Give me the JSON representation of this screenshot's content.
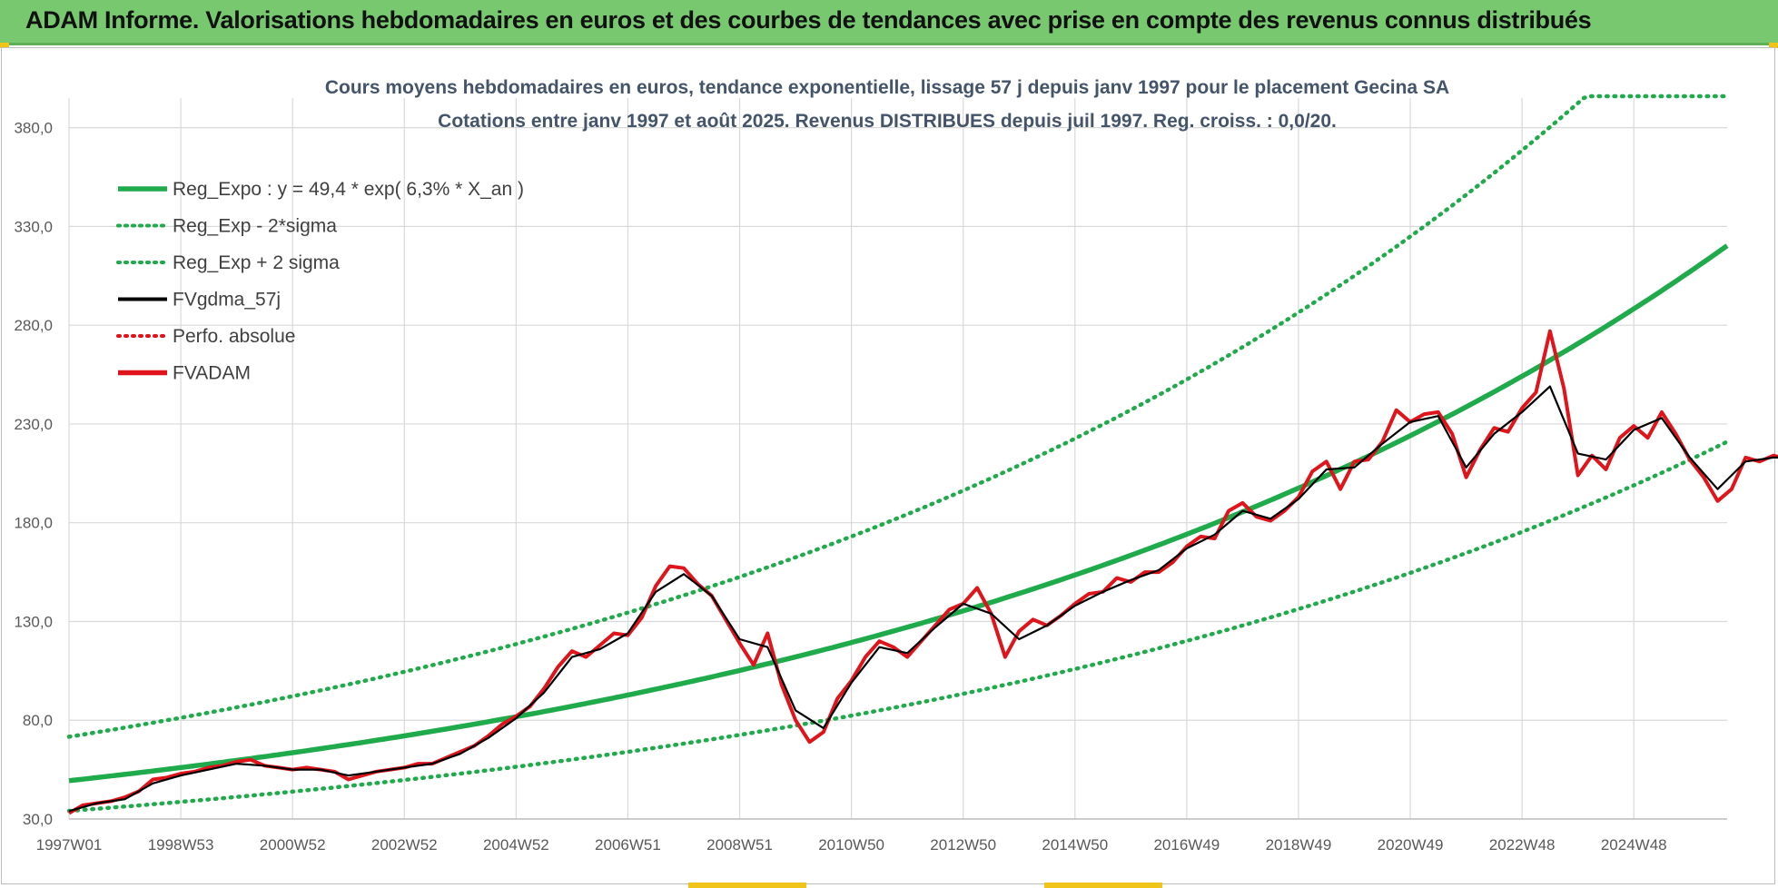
{
  "header": {
    "title": "ADAM Informe. Valorisations hebdomadaires en euros et des courbes de tendances avec prise en compte des revenus connus distribués"
  },
  "colors": {
    "banner": "#77c86e",
    "trend": "#1faa4b",
    "band": "#1faa4b",
    "smoothed": "#000000",
    "perfo": "#e0141b",
    "price": "#e0141b",
    "grid": "#d9d9d9",
    "axis_text": "#595959",
    "title_text": "#44546a"
  },
  "chart_data": {
    "type": "line",
    "title": "Cours moyens hebdomadaires en euros, tendance exponentielle, lissage 57 j depuis janv 1997 pour le placement Gecina SA",
    "subtitle": "Cotations entre janv 1997 et août 2025. Revenus DISTRIBUES depuis juil 1997. Reg. croiss. : 0,0/20.",
    "xlabel": "",
    "ylabel": "",
    "x_range": [
      "1997W01",
      "2025W34"
    ],
    "ylim": [
      30,
      395
    ],
    "yticks": [
      30,
      80,
      130,
      180,
      230,
      280,
      330,
      380
    ],
    "ytick_labels": [
      "30,0",
      "80,0",
      "130,0",
      "180,0",
      "230,0",
      "280,0",
      "330,0",
      "380,0"
    ],
    "xtick_labels": [
      "1997W01",
      "1998W53",
      "2000W52",
      "2002W52",
      "2004W52",
      "2006W51",
      "2008W51",
      "2010W50",
      "2012W50",
      "2014W50",
      "2016W49",
      "2018W49",
      "2020W49",
      "2022W48",
      "2024W48"
    ],
    "xtick_years": [
      1997.0,
      1999.0,
      2001.0,
      2003.0,
      2005.0,
      2007.0,
      2009.0,
      2011.0,
      2013.0,
      2015.0,
      2017.0,
      2019.0,
      2021.0,
      2023.0,
      2025.0
    ],
    "x_start_year": 1997.0,
    "x_end_year": 2026.67,
    "grid": true,
    "legend_position": "top-left",
    "regression": {
      "intercept": 49.4,
      "rate_percent": 6.3,
      "band_factor_minus": 0.69,
      "band_factor_plus": 1.45
    },
    "legend": [
      {
        "label": "Reg_Expo : y = 49,4 * exp( 6,3% *  X_an )",
        "style": "solid-thick",
        "color": "#1faa4b"
      },
      {
        "label": "Reg_Exp - 2*sigma",
        "style": "dotted",
        "color": "#1faa4b"
      },
      {
        "label": "Reg_Exp + 2 sigma",
        "style": "dotted",
        "color": "#1faa4b"
      },
      {
        "label": "FVgdma_57j",
        "style": "solid",
        "color": "#000000"
      },
      {
        "label": "Perfo. absolue",
        "style": "dotted",
        "color": "#e0141b"
      },
      {
        "label": "FVADAM",
        "style": "solid-thick",
        "color": "#e0141b"
      }
    ],
    "series": [
      {
        "name": "FVADAM",
        "points": [
          [
            1997.0,
            33
          ],
          [
            1997.25,
            37
          ],
          [
            1997.5,
            38
          ],
          [
            1997.75,
            39
          ],
          [
            1998.0,
            41
          ],
          [
            1998.25,
            44
          ],
          [
            1998.5,
            50
          ],
          [
            1998.75,
            51
          ],
          [
            1999.0,
            53
          ],
          [
            1999.25,
            54
          ],
          [
            1999.5,
            56
          ],
          [
            1999.75,
            57
          ],
          [
            2000.0,
            59
          ],
          [
            2000.25,
            60
          ],
          [
            2000.5,
            57
          ],
          [
            2000.75,
            56
          ],
          [
            2001.0,
            55
          ],
          [
            2001.25,
            56
          ],
          [
            2001.5,
            55
          ],
          [
            2001.75,
            54
          ],
          [
            2002.0,
            50
          ],
          [
            2002.25,
            52
          ],
          [
            2002.5,
            54
          ],
          [
            2002.75,
            55
          ],
          [
            2003.0,
            56
          ],
          [
            2003.25,
            58
          ],
          [
            2003.5,
            58
          ],
          [
            2003.75,
            61
          ],
          [
            2004.0,
            64
          ],
          [
            2004.25,
            67
          ],
          [
            2004.5,
            72
          ],
          [
            2004.75,
            78
          ],
          [
            2005.0,
            82
          ],
          [
            2005.25,
            87
          ],
          [
            2005.5,
            96
          ],
          [
            2005.75,
            107
          ],
          [
            2006.0,
            115
          ],
          [
            2006.25,
            112
          ],
          [
            2006.5,
            118
          ],
          [
            2006.75,
            124
          ],
          [
            2007.0,
            123
          ],
          [
            2007.25,
            132
          ],
          [
            2007.5,
            148
          ],
          [
            2007.75,
            158
          ],
          [
            2008.0,
            157
          ],
          [
            2008.25,
            149
          ],
          [
            2008.5,
            143
          ],
          [
            2008.75,
            131
          ],
          [
            2009.0,
            119
          ],
          [
            2009.25,
            108
          ],
          [
            2009.5,
            124
          ],
          [
            2009.75,
            98
          ],
          [
            2010.0,
            80
          ],
          [
            2010.25,
            69
          ],
          [
            2010.5,
            74
          ],
          [
            2010.75,
            91
          ],
          [
            2011.0,
            100
          ],
          [
            2011.25,
            112
          ],
          [
            2011.5,
            120
          ],
          [
            2011.75,
            117
          ],
          [
            2012.0,
            112
          ],
          [
            2012.25,
            120
          ],
          [
            2012.5,
            128
          ],
          [
            2012.75,
            136
          ],
          [
            2013.0,
            139
          ],
          [
            2013.25,
            147
          ],
          [
            2013.5,
            134
          ],
          [
            2013.75,
            112
          ],
          [
            2014.0,
            125
          ],
          [
            2014.25,
            131
          ],
          [
            2014.5,
            128
          ],
          [
            2014.75,
            133
          ],
          [
            2015.0,
            139
          ],
          [
            2015.25,
            144
          ],
          [
            2015.5,
            145
          ],
          [
            2015.75,
            152
          ],
          [
            2016.0,
            150
          ],
          [
            2016.25,
            155
          ],
          [
            2016.5,
            155
          ],
          [
            2016.75,
            160
          ],
          [
            2017.0,
            168
          ],
          [
            2017.25,
            173
          ],
          [
            2017.5,
            172
          ],
          [
            2017.75,
            186
          ],
          [
            2018.0,
            190
          ],
          [
            2018.25,
            183
          ],
          [
            2018.5,
            181
          ],
          [
            2018.75,
            186
          ],
          [
            2019.0,
            193
          ],
          [
            2019.25,
            206
          ],
          [
            2019.5,
            211
          ],
          [
            2019.75,
            197
          ],
          [
            2020.0,
            211
          ],
          [
            2020.25,
            212
          ],
          [
            2020.5,
            221
          ],
          [
            2020.75,
            237
          ],
          [
            2021.0,
            231
          ],
          [
            2021.25,
            235
          ],
          [
            2021.5,
            236
          ],
          [
            2021.75,
            225
          ],
          [
            2022.0,
            203
          ],
          [
            2022.25,
            217
          ],
          [
            2022.5,
            228
          ],
          [
            2022.75,
            226
          ],
          [
            2023.0,
            238
          ],
          [
            2023.25,
            246
          ],
          [
            2023.5,
            277
          ],
          [
            2023.75,
            248
          ],
          [
            2024.0,
            204
          ],
          [
            2024.25,
            214
          ],
          [
            2024.5,
            207
          ],
          [
            2024.75,
            223
          ],
          [
            2025.0,
            229
          ],
          [
            2025.25,
            223
          ],
          [
            2025.5,
            236
          ],
          [
            2025.75,
            225
          ],
          [
            2026.0,
            212
          ],
          [
            2026.25,
            203
          ],
          [
            2026.5,
            191
          ],
          [
            2026.75,
            197
          ],
          [
            2027.0,
            213
          ],
          [
            2027.25,
            211
          ],
          [
            2027.5,
            214
          ],
          [
            2027.75,
            212
          ],
          [
            2028.0,
            215
          ],
          [
            2028.25,
            211
          ],
          [
            2028.5,
            226
          ],
          [
            2028.75,
            212
          ],
          [
            2029.0,
            215
          ],
          [
            2029.25,
            213
          ],
          [
            2029.5,
            226
          ],
          [
            2029.75,
            213
          ],
          [
            2030.0,
            214
          ],
          [
            2030.25,
            217
          ],
          [
            2030.5,
            216
          ]
        ]
      },
      {
        "name": "FVgdma_57j",
        "points": [
          [
            1997.0,
            34
          ],
          [
            1997.5,
            38
          ],
          [
            1998.0,
            40
          ],
          [
            1998.5,
            48
          ],
          [
            1999.0,
            52
          ],
          [
            1999.5,
            55
          ],
          [
            2000.0,
            58
          ],
          [
            2000.5,
            57
          ],
          [
            2001.0,
            55
          ],
          [
            2001.5,
            55
          ],
          [
            2002.0,
            52
          ],
          [
            2002.5,
            54
          ],
          [
            2003.0,
            56
          ],
          [
            2003.5,
            58
          ],
          [
            2004.0,
            63
          ],
          [
            2004.5,
            71
          ],
          [
            2005.0,
            81
          ],
          [
            2005.5,
            94
          ],
          [
            2006.0,
            112
          ],
          [
            2006.5,
            116
          ],
          [
            2007.0,
            124
          ],
          [
            2007.5,
            145
          ],
          [
            2008.0,
            154
          ],
          [
            2008.5,
            143
          ],
          [
            2009.0,
            121
          ],
          [
            2009.5,
            117
          ],
          [
            2010.0,
            85
          ],
          [
            2010.5,
            76
          ],
          [
            2011.0,
            99
          ],
          [
            2011.5,
            117
          ],
          [
            2012.0,
            114
          ],
          [
            2012.5,
            127
          ],
          [
            2013.0,
            139
          ],
          [
            2013.5,
            134
          ],
          [
            2014.0,
            121
          ],
          [
            2014.5,
            128
          ],
          [
            2015.0,
            138
          ],
          [
            2015.5,
            145
          ],
          [
            2016.0,
            151
          ],
          [
            2016.5,
            156
          ],
          [
            2017.0,
            167
          ],
          [
            2017.5,
            174
          ],
          [
            2018.0,
            186
          ],
          [
            2018.5,
            182
          ],
          [
            2019.0,
            192
          ],
          [
            2019.5,
            207
          ],
          [
            2020.0,
            208
          ],
          [
            2020.5,
            220
          ],
          [
            2021.0,
            231
          ],
          [
            2021.5,
            234
          ],
          [
            2022.0,
            208
          ],
          [
            2022.5,
            225
          ],
          [
            2023.0,
            236
          ],
          [
            2023.5,
            249
          ],
          [
            2024.0,
            215
          ],
          [
            2024.5,
            212
          ],
          [
            2025.0,
            227
          ],
          [
            2025.5,
            233
          ],
          [
            2026.0,
            213
          ],
          [
            2026.5,
            197
          ],
          [
            2027.0,
            211
          ],
          [
            2027.5,
            213
          ],
          [
            2028.0,
            213
          ],
          [
            2028.5,
            219
          ],
          [
            2029.0,
            214
          ],
          [
            2029.5,
            220
          ],
          [
            2030.0,
            214
          ],
          [
            2030.5,
            215
          ]
        ]
      }
    ]
  }
}
